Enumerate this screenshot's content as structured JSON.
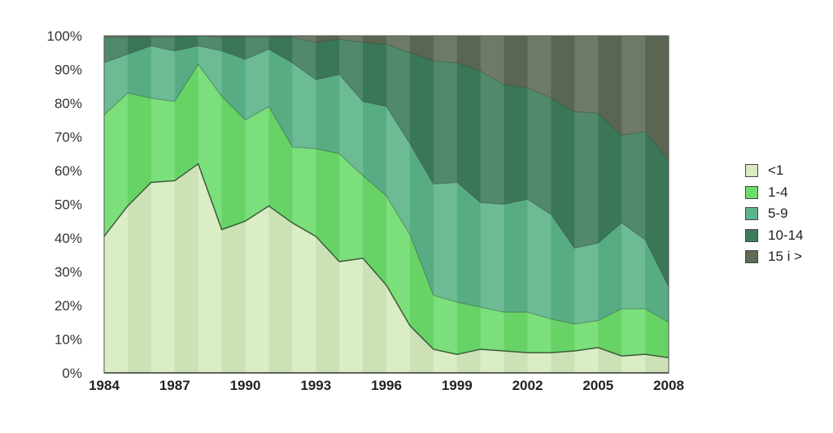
{
  "chart_data": {
    "type": "area",
    "stacked": true,
    "percent": true,
    "x": [
      1984,
      1985,
      1986,
      1987,
      1988,
      1989,
      1990,
      1991,
      1992,
      1993,
      1994,
      1995,
      1996,
      1997,
      1998,
      1999,
      2000,
      2001,
      2002,
      2003,
      2004,
      2005,
      2006,
      2007,
      2008
    ],
    "x_tick_labels": [
      "1984",
      "1987",
      "1990",
      "1993",
      "1996",
      "1999",
      "2002",
      "2005",
      "2008"
    ],
    "y_tick_labels": [
      "0%",
      "10%",
      "20%",
      "30%",
      "40%",
      "50%",
      "60%",
      "70%",
      "80%",
      "90%",
      "100%"
    ],
    "ylim": [
      0,
      100
    ],
    "legend_position": "right",
    "series": [
      {
        "name": "<1",
        "color": "#d6ebbf",
        "values": [
          40.5,
          49.5,
          56.5,
          57,
          62,
          42.5,
          45,
          49.5,
          44.5,
          40.5,
          33,
          34,
          26,
          14,
          7,
          5.5,
          7,
          6.5,
          6,
          6,
          6.5,
          7.5,
          5,
          5.5,
          4.5
        ]
      },
      {
        "name": "1-4",
        "color": "#6cdc6c",
        "values": [
          36,
          33.5,
          25,
          23.5,
          29.5,
          39.5,
          30,
          29.5,
          22.5,
          26,
          32,
          24.5,
          26.5,
          27,
          16,
          15.5,
          12.5,
          11.5,
          12,
          10,
          8,
          8,
          14,
          13.5,
          10.5
        ]
      },
      {
        "name": "5-9",
        "color": "#5cb48a",
        "values": [
          15.5,
          11.5,
          15.5,
          15,
          5.5,
          13.5,
          18,
          17,
          25,
          20.5,
          23.5,
          22,
          26.5,
          27,
          33,
          35.5,
          31,
          32,
          33.5,
          31,
          22.5,
          23,
          25.5,
          20.5,
          10.5
        ]
      },
      {
        "name": "10-14",
        "color": "#3d7c5c",
        "values": [
          7.5,
          5,
          2.5,
          4,
          3,
          4,
          6.5,
          3.5,
          7.5,
          11,
          10.5,
          17.5,
          18.5,
          27,
          36.5,
          35.5,
          39,
          35.5,
          33,
          34.5,
          40.5,
          38.5,
          26,
          32,
          37.5
        ]
      },
      {
        "name": "15 i >",
        "color": "#5e6b55",
        "values": [
          0.5,
          0.5,
          0.5,
          0.5,
          0,
          0.5,
          0.5,
          0.5,
          0.5,
          2,
          1,
          2,
          2.5,
          5,
          7.5,
          8,
          10.5,
          14.5,
          15.5,
          18.5,
          22.5,
          23,
          29.5,
          28.5,
          37
        ]
      }
    ]
  }
}
